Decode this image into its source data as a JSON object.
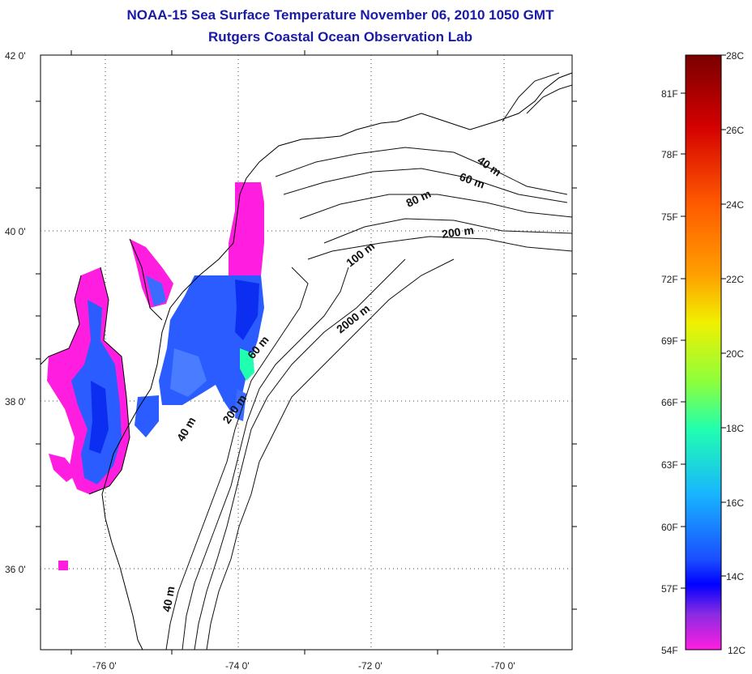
{
  "title": "NOAA-15 Sea Surface Temperature November 06, 2010 1050 GMT",
  "subtitle": "Rutgers Coastal Ocean Observation Lab",
  "map": {
    "lat_labels": [
      "42 0'",
      "40 0'",
      "38 0'",
      "36 0'"
    ],
    "lon_labels": [
      "-76 0'",
      "-74 0'",
      "-72 0'",
      "-70 0'"
    ],
    "depth_labels": [
      "40 m",
      "60 m",
      "80 m",
      "200 m",
      "100 m",
      "2000 m",
      "60 m",
      "200 m",
      "40 m",
      "40 m"
    ]
  },
  "colorbar": {
    "fahrenheit": [
      "81F",
      "78F",
      "75F",
      "72F",
      "69F",
      "66F",
      "63F",
      "60F",
      "57F",
      "54F"
    ],
    "celsius": [
      "28C",
      "26C",
      "24C",
      "22C",
      "20C",
      "18C",
      "16C",
      "14C",
      "12C"
    ],
    "gradient_colors": [
      "#7a0000",
      "#d40000",
      "#ff5a00",
      "#ffa000",
      "#f0f000",
      "#8cff3c",
      "#20ffb0",
      "#18b4ff",
      "#1a4cff",
      "#0000ff",
      "#8a2be2",
      "#ff1ee0"
    ]
  }
}
